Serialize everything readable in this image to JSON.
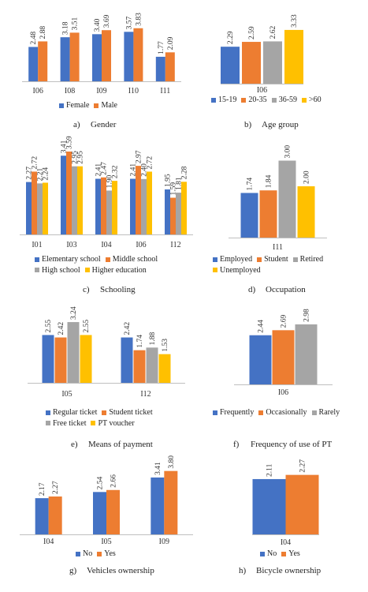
{
  "colors": {
    "blue": "#4472C4",
    "orange": "#ED7D31",
    "gray": "#A5A5A5",
    "yellow": "#FFC000",
    "axis": "#BFBFBF"
  },
  "chart_data": [
    {
      "id": "a",
      "type": "bar",
      "categories": [
        "I06",
        "I08",
        "I09",
        "I10",
        "I11"
      ],
      "series": [
        {
          "name": "Female",
          "values": [
            2.48,
            3.18,
            3.4,
            3.57,
            1.77
          ],
          "color": "#4472C4"
        },
        {
          "name": "Male",
          "values": [
            2.88,
            3.51,
            3.69,
            3.83,
            2.09
          ],
          "color": "#ED7D31"
        }
      ],
      "ylim": [
        0,
        4.5
      ],
      "legend_position": "bottom",
      "caption_letter": "a)",
      "caption_text": "Gender"
    },
    {
      "id": "b",
      "type": "bar",
      "categories": [
        "I06"
      ],
      "series": [
        {
          "name": "15-19",
          "values": [
            2.29
          ],
          "color": "#4472C4"
        },
        {
          "name": "20-35",
          "values": [
            2.59
          ],
          "color": "#ED7D31"
        },
        {
          "name": "36-59",
          "values": [
            2.62
          ],
          "color": "#A5A5A5"
        },
        {
          "name": ">60",
          "values": [
            3.33
          ],
          "color": "#FFC000"
        }
      ],
      "ylim": [
        0,
        4.5
      ],
      "legend_position": "bottom",
      "caption_letter": "b)",
      "caption_text": "Age group"
    },
    {
      "id": "c",
      "type": "bar",
      "categories": [
        "I01",
        "I03",
        "I04",
        "I06",
        "I12"
      ],
      "series": [
        {
          "name": "Elementary school",
          "values": [
            2.27,
            3.41,
            2.41,
            2.41,
            1.95
          ],
          "color": "#4472C4"
        },
        {
          "name": "Middle school",
          "values": [
            2.72,
            3.59,
            2.47,
            2.97,
            1.59
          ],
          "color": "#ED7D31"
        },
        {
          "name": "High school",
          "values": [
            2.21,
            2.95,
            1.9,
            2.4,
            1.81
          ],
          "color": "#A5A5A5"
        },
        {
          "name": "Higher education",
          "values": [
            2.24,
            2.95,
            2.32,
            2.72,
            2.28
          ],
          "color": "#FFC000"
        }
      ],
      "ylim": [
        0,
        4.0
      ],
      "legend_position": "bottom",
      "caption_letter": "c)",
      "caption_text": "Schooling"
    },
    {
      "id": "d",
      "type": "bar",
      "categories": [
        "I11"
      ],
      "series": [
        {
          "name": "Employed",
          "values": [
            1.74
          ],
          "color": "#4472C4"
        },
        {
          "name": "Student",
          "values": [
            1.84
          ],
          "color": "#ED7D31"
        },
        {
          "name": "Retired",
          "values": [
            3.0
          ],
          "color": "#A5A5A5"
        },
        {
          "name": "Unemployed",
          "values": [
            2.0
          ],
          "color": "#FFC000"
        }
      ],
      "ylim": [
        0,
        3.6
      ],
      "legend_position": "bottom",
      "caption_letter": "d)",
      "caption_text": "Occupation"
    },
    {
      "id": "e",
      "type": "bar",
      "categories": [
        "I05",
        "I12"
      ],
      "series": [
        {
          "name": "Regular ticket",
          "values": [
            2.55,
            2.42
          ],
          "color": "#4472C4"
        },
        {
          "name": "Student ticket",
          "values": [
            2.42,
            1.74
          ],
          "color": "#ED7D31"
        },
        {
          "name": "Free ticket",
          "values": [
            3.24,
            1.88
          ],
          "color": "#A5A5A5"
        },
        {
          "name": "PT voucher",
          "values": [
            2.55,
            1.53
          ],
          "color": "#FFC000"
        }
      ],
      "ylim": [
        0,
        4.0
      ],
      "legend_position": "bottom",
      "caption_letter": "e)",
      "caption_text": "Means of payment"
    },
    {
      "id": "f",
      "type": "bar",
      "categories": [
        "I06"
      ],
      "series": [
        {
          "name": "Frequently",
          "values": [
            2.44
          ],
          "color": "#4472C4"
        },
        {
          "name": "Occasionally",
          "values": [
            2.69
          ],
          "color": "#ED7D31"
        },
        {
          "name": "Rarely",
          "values": [
            2.98
          ],
          "color": "#A5A5A5"
        }
      ],
      "ylim": [
        0,
        3.8
      ],
      "legend_position": "bottom",
      "caption_letter": "f)",
      "caption_text": "Frequency of use of PT"
    },
    {
      "id": "g",
      "type": "bar",
      "categories": [
        "I04",
        "I05",
        "I09"
      ],
      "series": [
        {
          "name": "No",
          "values": [
            2.17,
            2.54,
            3.41
          ],
          "color": "#4472C4"
        },
        {
          "name": "Yes",
          "values": [
            2.27,
            2.66,
            3.8
          ],
          "color": "#ED7D31"
        }
      ],
      "ylim": [
        0,
        4.4
      ],
      "legend_position": "bottom",
      "caption_letter": "g)",
      "caption_text": "Vehicles ownership"
    },
    {
      "id": "h",
      "type": "bar",
      "categories": [
        "I04"
      ],
      "series": [
        {
          "name": "No",
          "values": [
            2.11
          ],
          "color": "#4472C4"
        },
        {
          "name": "Yes",
          "values": [
            2.27
          ],
          "color": "#ED7D31"
        }
      ],
      "ylim": [
        0,
        2.5
      ],
      "legend_position": "bottom",
      "caption_letter": "h)",
      "caption_text": "Bicycle ownership"
    }
  ]
}
